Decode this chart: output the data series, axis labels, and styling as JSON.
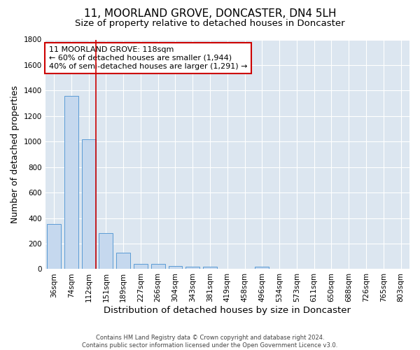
{
  "title": "11, MOORLAND GROVE, DONCASTER, DN4 5LH",
  "subtitle": "Size of property relative to detached houses in Doncaster",
  "xlabel": "Distribution of detached houses by size in Doncaster",
  "ylabel": "Number of detached properties",
  "categories": [
    "36sqm",
    "74sqm",
    "112sqm",
    "151sqm",
    "189sqm",
    "227sqm",
    "266sqm",
    "304sqm",
    "343sqm",
    "381sqm",
    "419sqm",
    "458sqm",
    "496sqm",
    "534sqm",
    "573sqm",
    "611sqm",
    "650sqm",
    "688sqm",
    "726sqm",
    "765sqm",
    "803sqm"
  ],
  "values": [
    355,
    1360,
    1020,
    285,
    130,
    43,
    43,
    27,
    18,
    18,
    0,
    0,
    18,
    0,
    0,
    0,
    0,
    0,
    0,
    0,
    0
  ],
  "bar_color": "#c5d8ee",
  "bar_edge_color": "#5b9bd5",
  "redline_color": "#cc0000",
  "annotation_text": "11 MOORLAND GROVE: 118sqm\n← 60% of detached houses are smaller (1,944)\n40% of semi-detached houses are larger (1,291) →",
  "annotation_box_color": "#ffffff",
  "annotation_box_edge_color": "#cc0000",
  "ylim": [
    0,
    1800
  ],
  "yticks": [
    0,
    200,
    400,
    600,
    800,
    1000,
    1200,
    1400,
    1600,
    1800
  ],
  "bg_color": "#dce6f0",
  "grid_color": "#ffffff",
  "footer": "Contains HM Land Registry data © Crown copyright and database right 2024.\nContains public sector information licensed under the Open Government Licence v3.0.",
  "title_fontsize": 11,
  "subtitle_fontsize": 9.5,
  "xlabel_fontsize": 9.5,
  "ylabel_fontsize": 9,
  "tick_fontsize": 7.5,
  "annotation_fontsize": 8,
  "footer_fontsize": 6
}
